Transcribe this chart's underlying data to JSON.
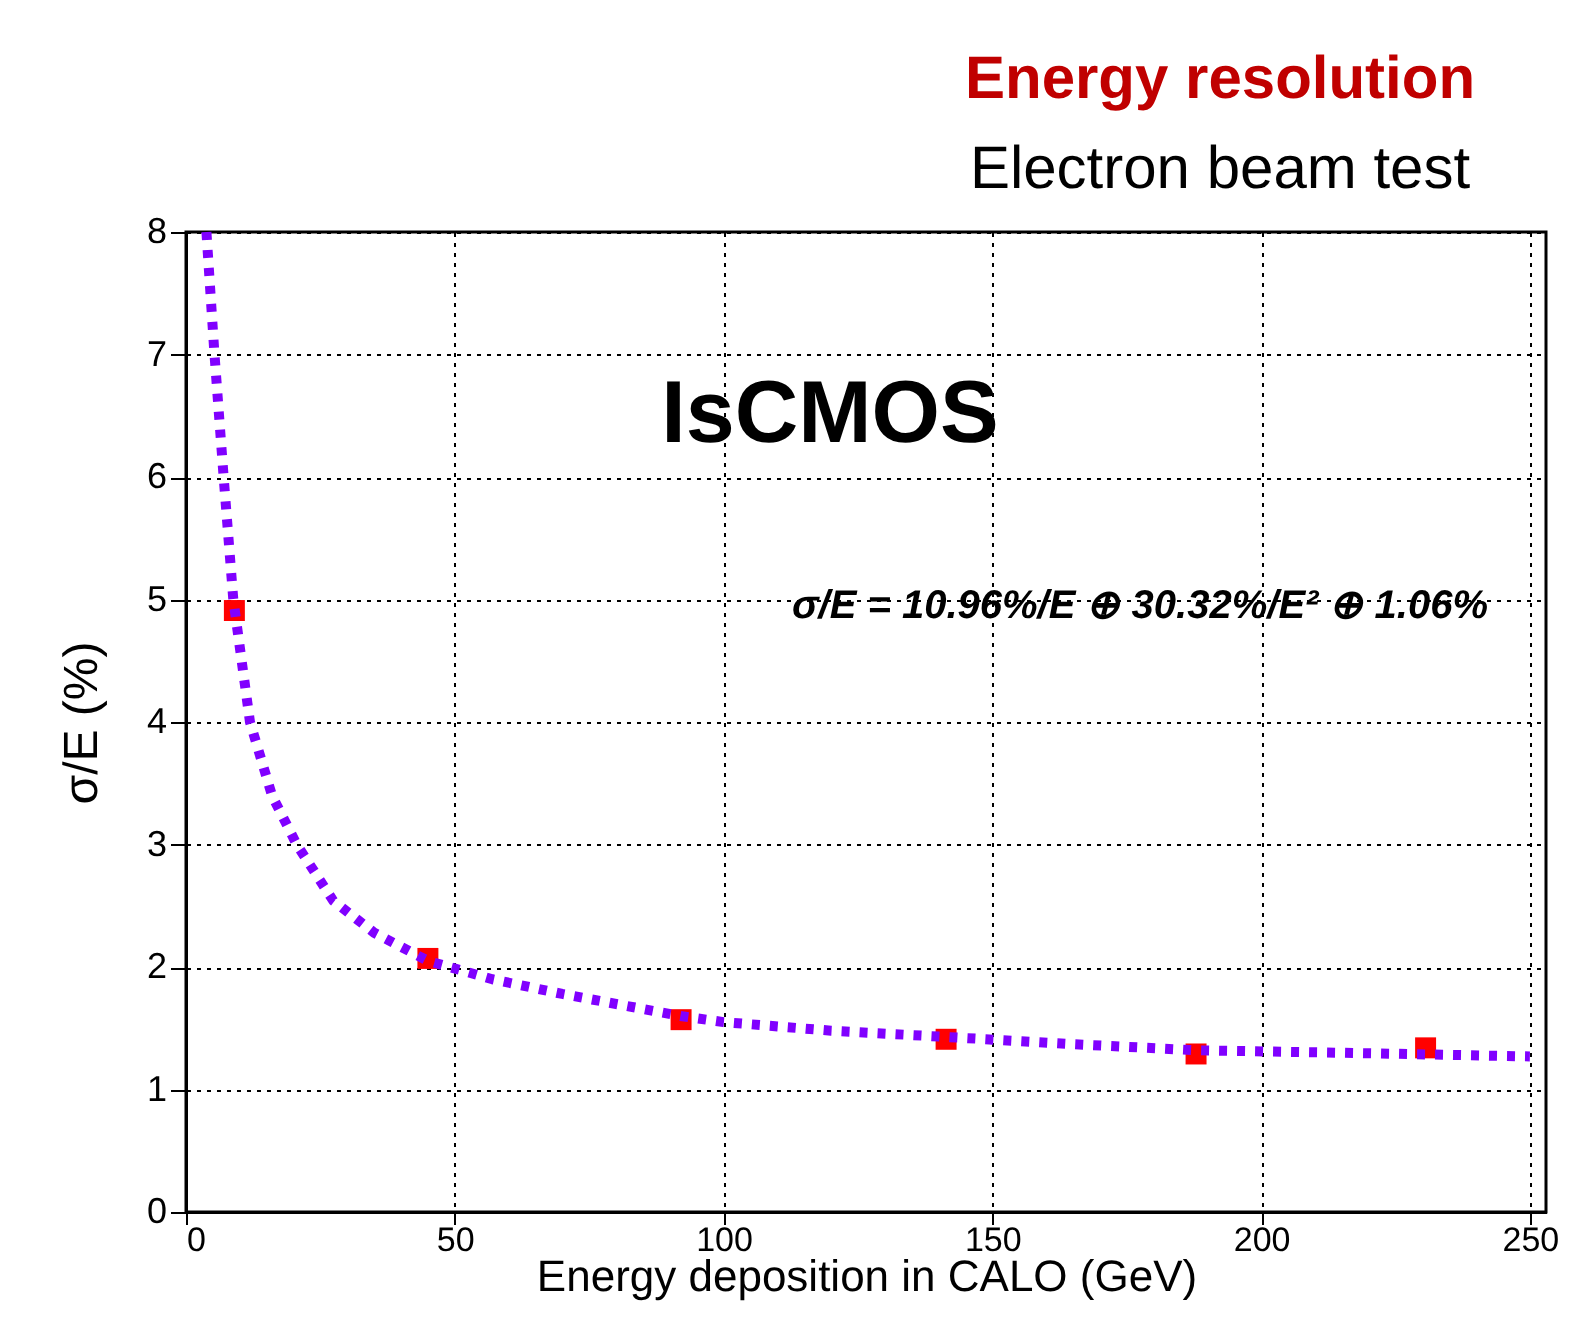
{
  "chart_data": {
    "type": "scatter",
    "title": "Energy resolution",
    "subtitle": "Electron beam test",
    "xlabel": "Energy deposition in CALO (GeV)",
    "ylabel": "σ/E (%)",
    "annotations": [
      "IsCMOS",
      "σ/E = 10.96%/E ⊕ 30.32%/E² ⊕ 1.06%"
    ],
    "xlim": [
      0,
      253
    ],
    "ylim": [
      0,
      8
    ],
    "xticks": [
      0,
      50,
      100,
      150,
      200,
      250
    ],
    "yticks": [
      0,
      1,
      2,
      3,
      4,
      5,
      6,
      7,
      8
    ],
    "grid": true,
    "series": [
      {
        "color": "#ff0000",
        "marker": "square",
        "x": [
          9.0,
          45.0,
          92.1,
          141.4,
          187.9,
          230.6
        ],
        "values": [
          4.91,
          2.07,
          1.57,
          1.41,
          1.29,
          1.34
        ]
      },
      {
        "type": "line",
        "color": "#8000ff",
        "line_style": "dotted",
        "marker": "none",
        "x": [
          3.8,
          5.3,
          7.0,
          8.8,
          11.9,
          16,
          20.6,
          27.4,
          35,
          45,
          57,
          70,
          92,
          100,
          120,
          141,
          165,
          188,
          215,
          250
        ],
        "values": [
          8,
          7,
          6,
          5,
          4,
          3.4,
          3,
          2.54,
          2.28,
          2.05,
          1.9,
          1.78,
          1.6,
          1.55,
          1.48,
          1.43,
          1.37,
          1.32,
          1.3,
          1.27
        ]
      }
    ]
  }
}
